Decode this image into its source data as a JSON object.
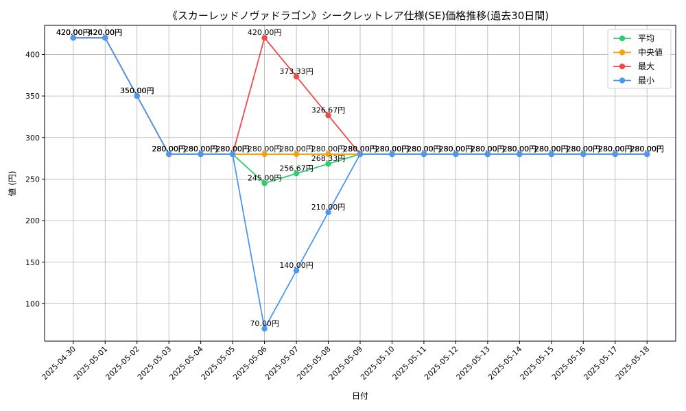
{
  "chart_data": {
    "type": "line",
    "title": "《スカーレッドノヴァドラゴン》シークレットレア仕様(SE)価格推移(過去30日間)",
    "xlabel": "日付",
    "ylabel": "値 (円)",
    "ylim": [
      55,
      435
    ],
    "yticks": [
      100,
      150,
      200,
      250,
      300,
      350,
      400
    ],
    "grid": true,
    "legend_position": "top-right",
    "label_suffix": "円",
    "categories": [
      "2025-04-30",
      "2025-05-01",
      "2025-05-02",
      "2025-05-03",
      "2025-05-04",
      "2025-05-05",
      "2025-05-06",
      "2025-05-07",
      "2025-05-08",
      "2025-05-09",
      "2025-05-10",
      "2025-05-11",
      "2025-05-12",
      "2025-05-13",
      "2025-05-14",
      "2025-05-15",
      "2025-05-16",
      "2025-05-17",
      "2025-05-18"
    ],
    "series": [
      {
        "name": "平均",
        "color": "#2ecc71",
        "values": [
          420,
          420,
          350,
          280,
          280,
          280,
          245,
          256.67,
          268.33,
          280,
          280,
          280,
          280,
          280,
          280,
          280,
          280,
          280,
          280
        ]
      },
      {
        "name": "中央値",
        "color": "#f5a30a",
        "values": [
          420,
          420,
          350,
          280,
          280,
          280,
          280,
          280,
          280,
          280,
          280,
          280,
          280,
          280,
          280,
          280,
          280,
          280,
          280
        ]
      },
      {
        "name": "最大",
        "color": "#f04a4a",
        "values": [
          420,
          420,
          350,
          280,
          280,
          280,
          420,
          373.33,
          326.67,
          280,
          280,
          280,
          280,
          280,
          280,
          280,
          280,
          280,
          280
        ]
      },
      {
        "name": "最小",
        "color": "#4a98f0",
        "values": [
          420,
          420,
          350,
          280,
          280,
          280,
          70,
          140,
          210,
          280,
          280,
          280,
          280,
          280,
          280,
          280,
          280,
          280,
          280
        ]
      }
    ]
  }
}
